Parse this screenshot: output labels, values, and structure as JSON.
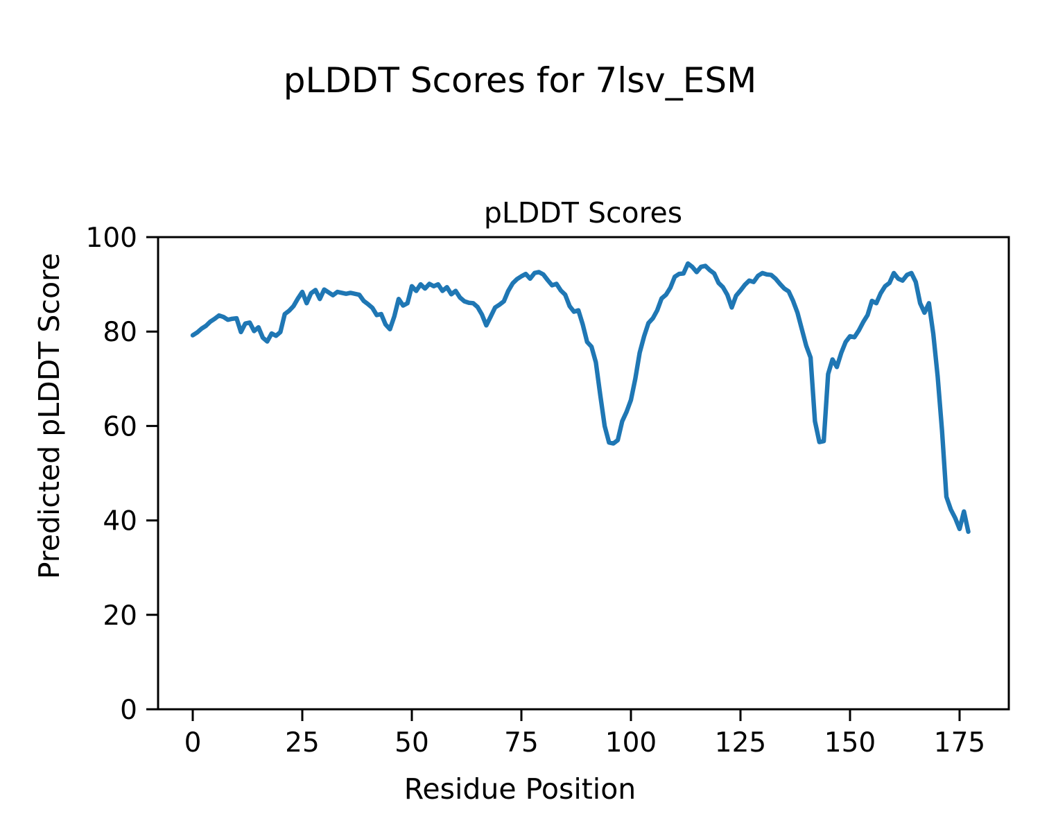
{
  "figure": {
    "suptitle": "pLDDT Scores for 7lsv_ESM",
    "axes_title": "pLDDT Scores",
    "xlabel": "Residue Position",
    "ylabel": "Predicted pLDDT Score"
  },
  "chart_data": {
    "type": "line",
    "title": "pLDDT Scores",
    "suptitle": "pLDDT Scores for 7lsv_ESM",
    "xlabel": "Residue Position",
    "ylabel": "Predicted pLDDT Score",
    "line_color": "#1f77b4",
    "grid": false,
    "legend": false,
    "xlim": [
      -8.9,
      186.3
    ],
    "ylim": [
      0,
      100
    ],
    "x_ticks": [
      0,
      25,
      50,
      75,
      100,
      125,
      150,
      175
    ],
    "y_ticks": [
      0,
      20,
      40,
      60,
      80,
      100
    ],
    "x_start": 0,
    "x_step": 1,
    "series": [
      {
        "name": "pLDDT",
        "values": [
          79.2,
          79.8,
          80.6,
          81.2,
          82.1,
          82.7,
          83.4,
          83.1,
          82.5,
          82.7,
          82.8,
          79.9,
          81.7,
          81.9,
          80.1,
          80.9,
          78.7,
          77.9,
          79.6,
          79.1,
          79.9,
          83.7,
          84.4,
          85.4,
          87.0,
          88.4,
          86.0,
          88.1,
          88.8,
          86.9,
          88.9,
          88.3,
          87.7,
          88.4,
          88.2,
          88.0,
          88.2,
          88.0,
          87.8,
          86.5,
          85.8,
          85.0,
          83.5,
          83.7,
          81.5,
          80.5,
          83.2,
          86.9,
          85.5,
          86.0,
          89.6,
          88.6,
          90.0,
          89.1,
          90.1,
          89.6,
          90.0,
          88.6,
          89.4,
          87.9,
          88.6,
          87.2,
          86.4,
          86.1,
          86.0,
          85.2,
          83.6,
          81.3,
          83.2,
          85.1,
          85.7,
          86.4,
          88.6,
          90.2,
          91.1,
          91.7,
          92.2,
          91.2,
          92.4,
          92.6,
          92.1,
          90.9,
          89.8,
          90.1,
          88.7,
          87.8,
          85.4,
          84.2,
          84.5,
          81.5,
          77.8,
          76.8,
          73.5,
          66.5,
          60.0,
          56.5,
          56.3,
          57.0,
          61.0,
          63.0,
          65.5,
          70.0,
          75.5,
          79.0,
          81.8,
          82.8,
          84.5,
          87.0,
          87.8,
          89.3,
          91.6,
          92.2,
          92.3,
          94.4,
          93.7,
          92.6,
          93.7,
          93.9,
          93.0,
          92.3,
          90.3,
          89.4,
          87.8,
          85.1,
          87.6,
          88.7,
          89.9,
          90.8,
          90.5,
          91.8,
          92.4,
          92.1,
          92.0,
          91.2,
          90.1,
          89.1,
          88.5,
          86.5,
          84.0,
          80.5,
          77.0,
          74.5,
          61.0,
          56.6,
          56.8,
          71.0,
          74.1,
          72.5,
          75.5,
          77.8,
          79.0,
          78.8,
          80.2,
          82.0,
          83.5,
          86.5,
          86.0,
          88.1,
          89.6,
          90.3,
          92.4,
          91.2,
          90.8,
          92.0,
          92.4,
          90.5,
          86.0,
          84.0,
          86.0,
          79.5,
          70.5,
          59.0,
          45.0,
          42.3,
          40.5,
          38.2,
          41.9,
          37.6
        ]
      }
    ]
  }
}
